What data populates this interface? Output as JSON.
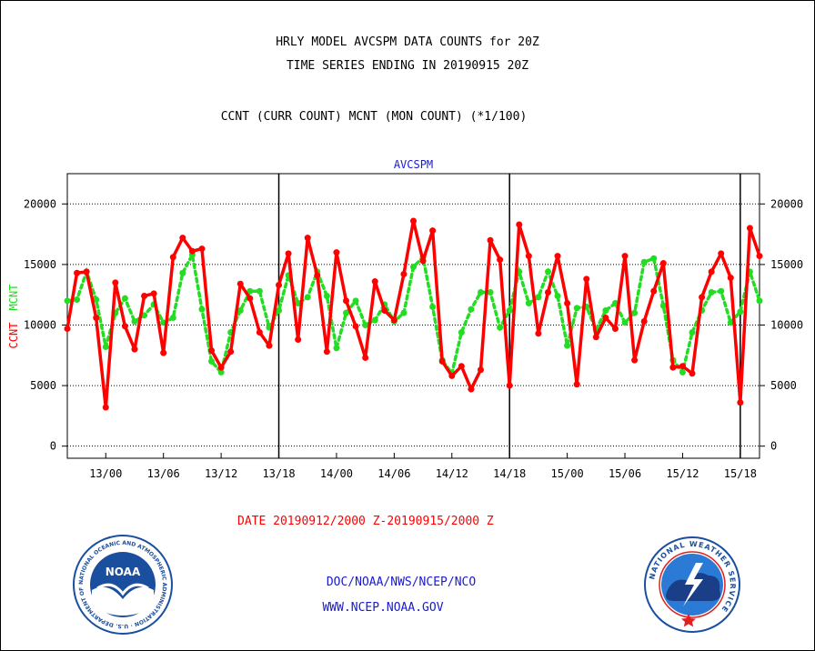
{
  "header": {
    "title_line1": "HRLY MODEL AVCSPM DATA COUNTS for 20Z",
    "title_line2": "TIME SERIES ENDING IN 20190915 20Z",
    "subtitle": "CCNT (CURR COUNT) MCNT (MON COUNT) (*1/100)"
  },
  "footer": {
    "date_range": "DATE 20190912/2000 Z-20190915/2000 Z",
    "agency": "DOC/NOAA/NWS/NCEP/NCO",
    "website": "WWW.NCEP.NOAA.GOV"
  },
  "logos": {
    "left_name": "noaa-logo",
    "left_text": "NOAA",
    "left_ring_text": "NATIONAL OCEANIC AND ATMOSPHERIC ADMINISTRATION · U.S. DEPARTMENT OF COMMERCE",
    "right_name": "nws-logo",
    "right_ring_text": "NATIONAL WEATHER SERVICE"
  },
  "colors": {
    "ccnt": "#ff0000",
    "mcnt": "#22dd22",
    "axis_title": "#1a1ad0",
    "noaa_blue": "#1a4fa0",
    "nws_blue": "#2a7ad6"
  },
  "chart_data": {
    "type": "line",
    "plot_title": "AVCSPM",
    "ylabel_left_ccnt": "CCNT",
    "ylabel_left_mcnt": "MCNT",
    "ylim": [
      -1000,
      22500
    ],
    "yticks": [
      0,
      5000,
      10000,
      15000,
      20000
    ],
    "ytick_labels": [
      "0",
      "5000",
      "10000",
      "15000",
      "20000"
    ],
    "grid": true,
    "xticks": [
      {
        "label": "13/00",
        "x": 4
      },
      {
        "label": "13/06",
        "x": 10
      },
      {
        "label": "13/12",
        "x": 16
      },
      {
        "label": "13/18",
        "x": 22
      },
      {
        "label": "14/00",
        "x": 28
      },
      {
        "label": "14/06",
        "x": 34
      },
      {
        "label": "14/12",
        "x": 40
      },
      {
        "label": "14/18",
        "x": 46
      },
      {
        "label": "15/00",
        "x": 52
      },
      {
        "label": "15/06",
        "x": 58
      },
      {
        "label": "15/12",
        "x": 64
      },
      {
        "label": "15/18",
        "x": 70
      }
    ],
    "day_boundaries": [
      22,
      46,
      70
    ],
    "xlim": [
      0,
      72
    ],
    "series": [
      {
        "name": "CCNT",
        "style": "solid",
        "values": [
          9700,
          14300,
          14400,
          10600,
          3200,
          13500,
          9900,
          8000,
          12400,
          12600,
          7700,
          15600,
          17200,
          16100,
          16300,
          7900,
          6500,
          7800,
          13400,
          12200,
          9400,
          8300,
          13300,
          15900,
          8800,
          17200,
          14100,
          7800,
          16000,
          12000,
          9900,
          7300,
          13600,
          11200,
          10400,
          14200,
          18600,
          15300,
          17800,
          7000,
          5800,
          6600,
          4700,
          6300,
          17000,
          15400,
          5000,
          18300,
          15700,
          9300,
          12700,
          15700,
          11800,
          5100,
          13800,
          9000,
          10600,
          9700,
          15700,
          7100,
          10300,
          12800,
          15100,
          6500,
          6600,
          6000,
          12300,
          14400,
          15900,
          13900,
          3600,
          18000,
          15700
        ]
      },
      {
        "name": "MCNT",
        "style": "dotted",
        "values": [
          12000,
          12100,
          14400,
          12100,
          8200,
          11000,
          12200,
          10300,
          10800,
          11700,
          10200,
          10600,
          14300,
          15800,
          11300,
          7000,
          6100,
          9400,
          11200,
          12800,
          12800,
          9800,
          11200,
          14100,
          11800,
          12300,
          14400,
          12400,
          8100,
          11000,
          12000,
          10000,
          10400,
          11700,
          10300,
          11000,
          14800,
          15600,
          11500,
          7100,
          6000,
          9400,
          11300,
          12700,
          12700,
          9800,
          11200,
          14400,
          11800,
          12300,
          14400,
          12400,
          8300,
          11400,
          11500,
          9600,
          11200,
          11800,
          10200,
          11000,
          15200,
          15500,
          11600,
          7100,
          6100,
          9400,
          11200,
          12700,
          12800,
          10200,
          11100,
          14400,
          12000
        ]
      }
    ]
  }
}
